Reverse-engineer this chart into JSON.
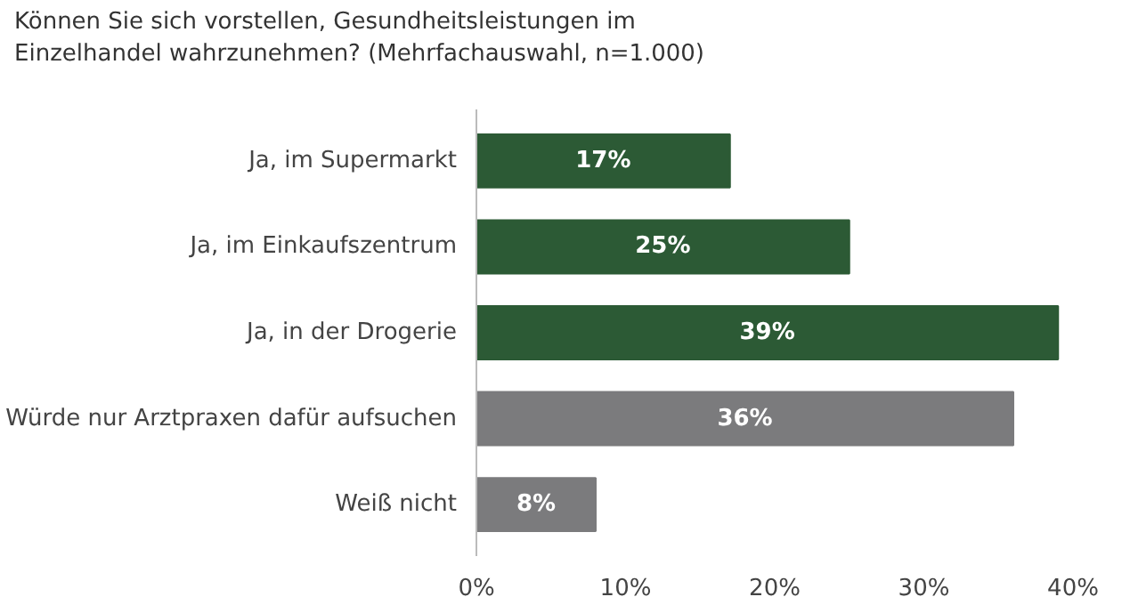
{
  "chart_data": {
    "type": "bar",
    "orientation": "horizontal",
    "title": "Können Sie sich vorstellen, Gesundheitsleistungen im Einzelhandel wahrzunehmen? (Mehrfachauswahl, n=1.000)",
    "categories": [
      "Ja, im Supermarkt",
      "Ja, im Einkaufszentrum",
      "Ja, in der Drogerie",
      "Würde nur Arztpraxen dafür aufsuchen",
      "Weiß nicht"
    ],
    "values": [
      17,
      25,
      39,
      36,
      8
    ],
    "colors": [
      "#2c5a35",
      "#2c5a35",
      "#2c5a35",
      "#7b7b7d",
      "#7b7b7d"
    ],
    "value_labels": [
      "17%",
      "25%",
      "39%",
      "36%",
      "8%"
    ],
    "xlim": [
      0,
      40
    ],
    "xticks": [
      {
        "value": 0,
        "label": "0%"
      },
      {
        "value": 10,
        "label": "10%"
      },
      {
        "value": 20,
        "label": "20%"
      },
      {
        "value": 30,
        "label": "30%"
      },
      {
        "value": 40,
        "label": "40%"
      }
    ],
    "grid": false
  }
}
